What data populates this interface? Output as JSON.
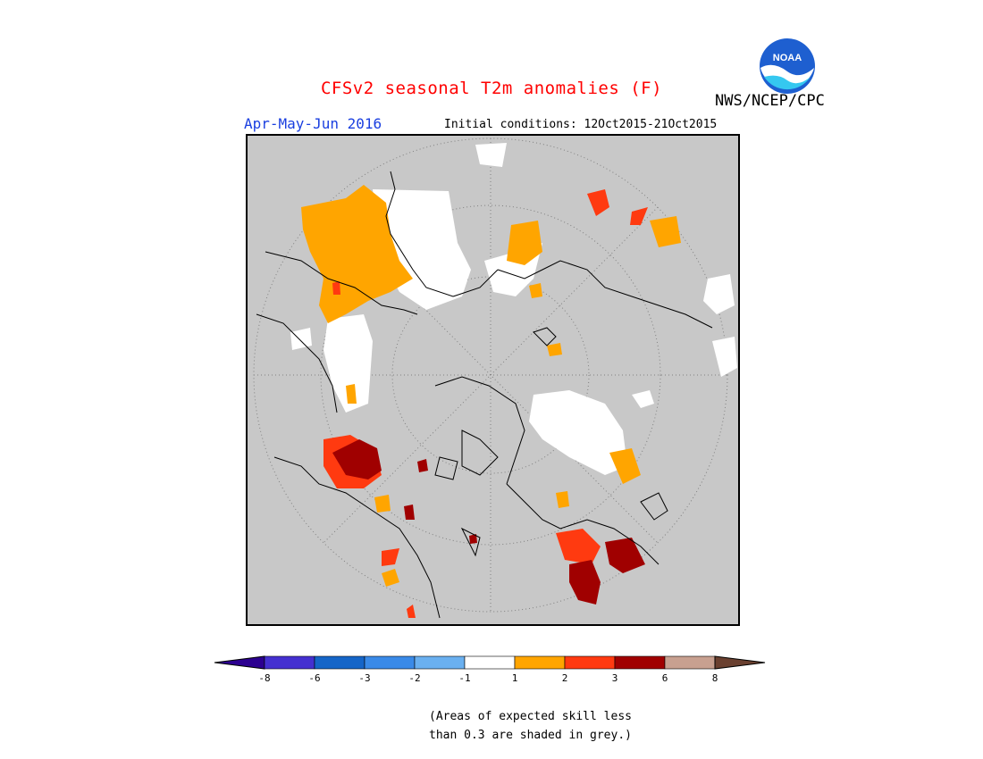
{
  "header": {
    "title": "CFSv2 seasonal T2m anomalies (F)",
    "agency": "NWS/NCEP/CPC",
    "logo_text": "NOAA",
    "season": "Apr-May-Jun 2016",
    "initial_conditions": "Initial conditions: 12Oct2015-21Oct2015"
  },
  "colors": {
    "title": "#ff0000",
    "season": "#1a3fe0",
    "land_grey": "#c8c8c8",
    "white": "#ffffff",
    "orange_1_2": "#ffa500",
    "red_2_3": "#ff3a10",
    "darkred_3_6": "#a00000"
  },
  "legend": {
    "bins": [
      {
        "color": "#2c0090",
        "label": ""
      },
      {
        "color": "#4430d0",
        "label": "-8"
      },
      {
        "color": "#1565c8",
        "label": "-6"
      },
      {
        "color": "#3a8ae8",
        "label": "-3"
      },
      {
        "color": "#6ab0f0",
        "label": "-2"
      },
      {
        "color": "#ffffff",
        "label": "-1"
      },
      {
        "color": "#ffa500",
        "label": "1"
      },
      {
        "color": "#ff3a10",
        "label": "2"
      },
      {
        "color": "#a00000",
        "label": "3"
      },
      {
        "color": "#c8a090",
        "label": "6"
      },
      {
        "color": "#6a4030",
        "label": "8"
      }
    ]
  },
  "note": {
    "line1": "(Areas of expected skill less",
    "line2": "than 0.3 are shaded in grey.)"
  }
}
